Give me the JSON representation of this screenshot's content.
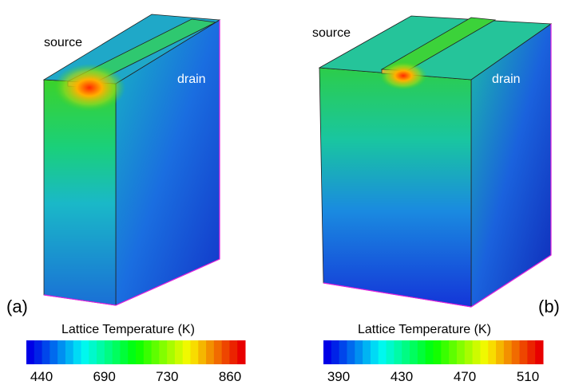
{
  "panels": [
    {
      "label": "(a)",
      "source_label": "source",
      "drain_label": "drain",
      "colorbar": {
        "title": "Lattice Temperature (K)",
        "ticks": [
          440,
          690,
          730,
          860
        ]
      }
    },
    {
      "label": "(b)",
      "source_label": "source",
      "drain_label": "drain",
      "colorbar": {
        "title": "Lattice Temperature (K)",
        "ticks": [
          390,
          430,
          470,
          510
        ]
      }
    }
  ]
}
